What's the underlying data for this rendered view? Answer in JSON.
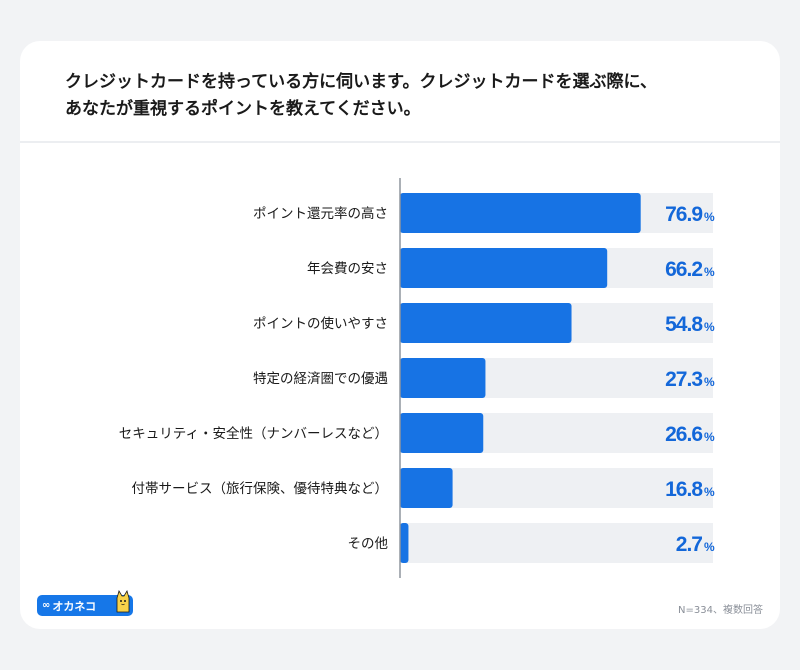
{
  "title_lines": [
    "クレジットカードを持っている方に伺います。クレジットカードを選ぶ際に、",
    "あなたが重視するポイントを教えてください。"
  ],
  "brand": {
    "mark": "∞",
    "name": "オカネコ",
    "color": "#1677e8"
  },
  "footnote": "N=334、複数回答",
  "colors": {
    "bar": "#1773e4",
    "track": "#eef0f3",
    "value_text": "#1367d9",
    "label_text": "#1a1a1a",
    "axis": "#8f959d"
  },
  "chart_data": {
    "type": "bar",
    "orientation": "horizontal",
    "categories": [
      "ポイント還元率の高さ",
      "年会費の安さ",
      "ポイントの使いやすさ",
      "特定の経済圏での優遇",
      "セキュリティ・安全性（ナンバーレスなど）",
      "付帯サービス（旅行保険、優待特典など）",
      "その他"
    ],
    "values": [
      76.9,
      66.2,
      54.8,
      27.3,
      26.6,
      16.8,
      2.7
    ],
    "value_labels": [
      "76.9",
      "66.2",
      "54.8",
      "27.3",
      "26.6",
      "16.8",
      "2.7"
    ],
    "unit": "%",
    "xlim": [
      0,
      100
    ],
    "grid": false,
    "legend": "none"
  }
}
